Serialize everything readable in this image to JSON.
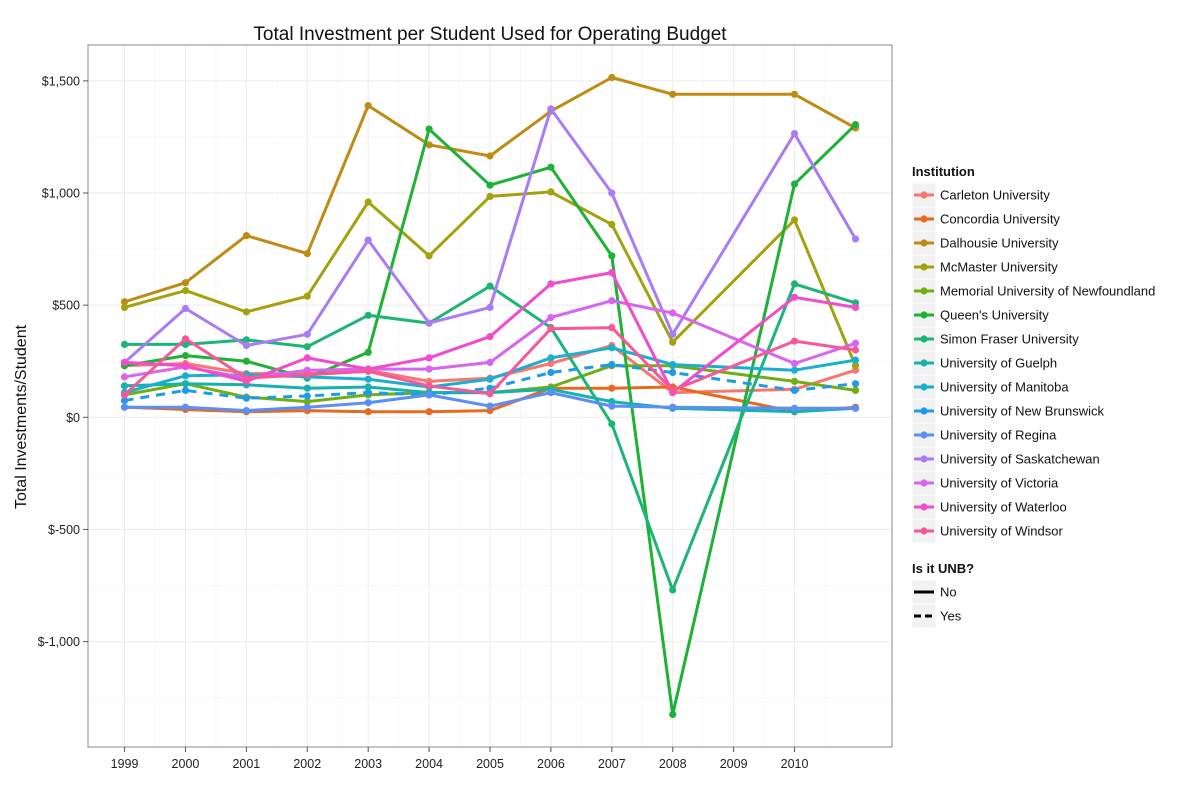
{
  "chart_data": {
    "type": "line",
    "title": "Total Investment per Student Used for Operating Budget",
    "xlabel": "",
    "ylabel": "Total Investments/Student",
    "xlim": [
      1998.4,
      2011.6
    ],
    "ylim": [
      -1470,
      1660
    ],
    "x_ticks": [
      1999,
      2000,
      2001,
      2002,
      2003,
      2004,
      2005,
      2006,
      2007,
      2008,
      2009,
      2010
    ],
    "y_ticks": [
      -1000,
      -500,
      0,
      500,
      1000,
      1500
    ],
    "y_tick_labels": [
      "$-1,000",
      "$-500",
      "$0",
      "$500",
      "$1,000",
      "$1,500"
    ],
    "grid": true,
    "legend_placement": "right",
    "legend_title": "Institution",
    "linetype_legend_title": "Is it UNB?",
    "linetype_legend": [
      {
        "label": "No",
        "dash": "solid"
      },
      {
        "label": "Yes",
        "dash": "dashed"
      }
    ],
    "series": [
      {
        "name": "Carleton University",
        "color": "#F8766D",
        "dashed": false,
        "points": [
          [
            1999,
            230
          ],
          [
            2000,
            240
          ],
          [
            2001,
            195
          ],
          [
            2002,
            195
          ],
          [
            2003,
            210
          ],
          [
            2004,
            160
          ],
          [
            2005,
            175
          ],
          [
            2006,
            240
          ],
          [
            2007,
            320
          ],
          [
            2008,
            110
          ],
          [
            2010,
            125
          ],
          [
            2011,
            210
          ]
        ]
      },
      {
        "name": "Concordia University",
        "color": "#E76B1F",
        "dashed": false,
        "points": [
          [
            1999,
            45
          ],
          [
            2000,
            35
          ],
          [
            2001,
            25
          ],
          [
            2002,
            30
          ],
          [
            2003,
            25
          ],
          [
            2004,
            25
          ],
          [
            2005,
            30
          ],
          [
            2006,
            130
          ],
          [
            2007,
            130
          ],
          [
            2008,
            135
          ],
          [
            2010,
            25
          ],
          [
            2011,
            45
          ]
        ]
      },
      {
        "name": "Dalhousie University",
        "color": "#C08B12",
        "dashed": false,
        "points": [
          [
            1999,
            515
          ],
          [
            2000,
            600
          ],
          [
            2001,
            810
          ],
          [
            2002,
            730
          ],
          [
            2003,
            1390
          ],
          [
            2004,
            1215
          ],
          [
            2005,
            1165
          ],
          [
            2006,
            1365
          ],
          [
            2007,
            1515
          ],
          [
            2008,
            1440
          ],
          [
            2010,
            1440
          ],
          [
            2011,
            1290
          ]
        ]
      },
      {
        "name": "McMaster University",
        "color": "#A3A20E",
        "dashed": false,
        "points": [
          [
            1999,
            490
          ],
          [
            2000,
            565
          ],
          [
            2001,
            470
          ],
          [
            2002,
            540
          ],
          [
            2003,
            960
          ],
          [
            2004,
            720
          ],
          [
            2005,
            985
          ],
          [
            2006,
            1005
          ],
          [
            2007,
            860
          ],
          [
            2008,
            335
          ],
          [
            2010,
            880
          ],
          [
            2011,
            230
          ]
        ]
      },
      {
        "name": "Memorial University of Newfoundland",
        "color": "#6FAF11",
        "dashed": false,
        "points": [
          [
            1999,
            100
          ],
          [
            2000,
            150
          ],
          [
            2001,
            90
          ],
          [
            2002,
            70
          ],
          [
            2003,
            100
          ],
          [
            2004,
            110
          ],
          [
            2005,
            110
          ],
          [
            2006,
            135
          ],
          [
            2007,
            230
          ],
          [
            2008,
            230
          ],
          [
            2010,
            160
          ],
          [
            2011,
            120
          ]
        ]
      },
      {
        "name": "Queen's University",
        "color": "#1DB235",
        "dashed": false,
        "points": [
          [
            1999,
            230
          ],
          [
            2000,
            275
          ],
          [
            2001,
            250
          ],
          [
            2002,
            175
          ],
          [
            2003,
            290
          ],
          [
            2004,
            1285
          ],
          [
            2005,
            1035
          ],
          [
            2006,
            1115
          ],
          [
            2007,
            720
          ],
          [
            2008,
            -1325
          ],
          [
            2010,
            1040
          ],
          [
            2011,
            1305
          ]
        ]
      },
      {
        "name": "Simon Fraser University",
        "color": "#1CB477",
        "dashed": false,
        "points": [
          [
            1999,
            325
          ],
          [
            2000,
            325
          ],
          [
            2001,
            345
          ],
          [
            2002,
            315
          ],
          [
            2003,
            455
          ],
          [
            2004,
            420
          ],
          [
            2005,
            585
          ],
          [
            2006,
            400
          ],
          [
            2007,
            -30
          ],
          [
            2008,
            -770
          ],
          [
            2010,
            595
          ],
          [
            2011,
            510
          ]
        ]
      },
      {
        "name": "University of Guelph",
        "color": "#17B2A9",
        "dashed": false,
        "points": [
          [
            1999,
            140
          ],
          [
            2000,
            150
          ],
          [
            2001,
            145
          ],
          [
            2002,
            130
          ],
          [
            2003,
            135
          ],
          [
            2004,
            110
          ],
          [
            2005,
            110
          ],
          [
            2006,
            125
          ],
          [
            2007,
            70
          ],
          [
            2008,
            40
          ],
          [
            2010,
            25
          ],
          [
            2011,
            40
          ]
        ]
      },
      {
        "name": "University of Manitoba",
        "color": "#18AFD0",
        "dashed": false,
        "points": [
          [
            1999,
            110
          ],
          [
            2000,
            185
          ],
          [
            2001,
            190
          ],
          [
            2002,
            180
          ],
          [
            2003,
            170
          ],
          [
            2004,
            135
          ],
          [
            2005,
            170
          ],
          [
            2006,
            265
          ],
          [
            2007,
            310
          ],
          [
            2008,
            235
          ],
          [
            2010,
            210
          ],
          [
            2011,
            255
          ]
        ]
      },
      {
        "name": "University of New Brunswick",
        "color": "#1E9BE8",
        "dashed": true,
        "points": [
          [
            1999,
            75
          ],
          [
            2000,
            120
          ],
          [
            2001,
            85
          ],
          [
            2002,
            95
          ],
          [
            2003,
            110
          ],
          [
            2004,
            100
          ],
          [
            2005,
            130
          ],
          [
            2006,
            200
          ],
          [
            2007,
            235
          ],
          [
            2008,
            200
          ],
          [
            2010,
            120
          ],
          [
            2011,
            150
          ]
        ]
      },
      {
        "name": "University of Regina",
        "color": "#5C8FF5",
        "dashed": false,
        "points": [
          [
            1999,
            45
          ],
          [
            2000,
            45
          ],
          [
            2001,
            30
          ],
          [
            2002,
            45
          ],
          [
            2003,
            65
          ],
          [
            2004,
            100
          ],
          [
            2005,
            50
          ],
          [
            2006,
            110
          ],
          [
            2007,
            50
          ],
          [
            2008,
            45
          ],
          [
            2010,
            40
          ],
          [
            2011,
            40
          ]
        ]
      },
      {
        "name": "University of Saskatchewan",
        "color": "#A97CF4",
        "dashed": false,
        "points": [
          [
            1999,
            245
          ],
          [
            2000,
            485
          ],
          [
            2001,
            320
          ],
          [
            2002,
            370
          ],
          [
            2003,
            790
          ],
          [
            2004,
            420
          ],
          [
            2005,
            490
          ],
          [
            2006,
            1375
          ],
          [
            2007,
            1000
          ],
          [
            2008,
            370
          ],
          [
            2010,
            1265
          ],
          [
            2011,
            795
          ]
        ]
      },
      {
        "name": "University of Victoria",
        "color": "#D865F0",
        "dashed": false,
        "points": [
          [
            1999,
            180
          ],
          [
            2000,
            225
          ],
          [
            2001,
            175
          ],
          [
            2002,
            210
          ],
          [
            2003,
            215
          ],
          [
            2004,
            215
          ],
          [
            2005,
            245
          ],
          [
            2006,
            445
          ],
          [
            2007,
            520
          ],
          [
            2008,
            465
          ],
          [
            2010,
            240
          ],
          [
            2011,
            330
          ]
        ]
      },
      {
        "name": "University of Waterloo",
        "color": "#F04CCD",
        "dashed": false,
        "points": [
          [
            1999,
            245
          ],
          [
            2000,
            230
          ],
          [
            2001,
            160
          ],
          [
            2002,
            265
          ],
          [
            2003,
            215
          ],
          [
            2004,
            265
          ],
          [
            2005,
            360
          ],
          [
            2006,
            595
          ],
          [
            2007,
            645
          ],
          [
            2008,
            110
          ],
          [
            2010,
            535
          ],
          [
            2011,
            490
          ]
        ]
      },
      {
        "name": "University of Windsor",
        "color": "#F6589A",
        "dashed": false,
        "points": [
          [
            1999,
            100
          ],
          [
            2000,
            350
          ],
          [
            2001,
            175
          ],
          [
            2002,
            190
          ],
          [
            2003,
            205
          ],
          [
            2004,
            140
          ],
          [
            2005,
            105
          ],
          [
            2006,
            395
          ],
          [
            2007,
            400
          ],
          [
            2008,
            120
          ],
          [
            2010,
            340
          ],
          [
            2011,
            300
          ]
        ]
      }
    ]
  }
}
